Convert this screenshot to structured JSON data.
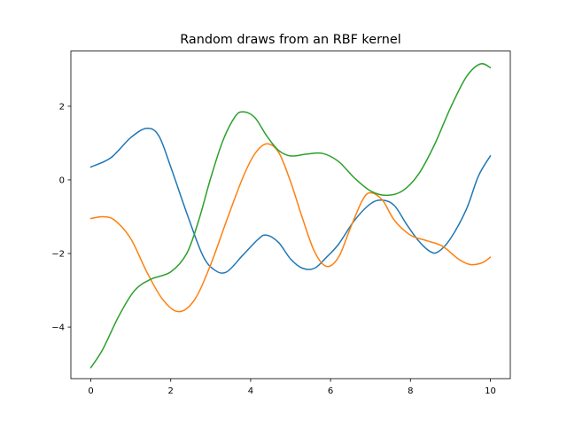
{
  "chart_data": {
    "type": "line",
    "title": "Random draws from an RBF kernel",
    "xlabel": "",
    "ylabel": "",
    "xlim": [
      -0.5,
      10.5
    ],
    "ylim": [
      -5.4,
      3.5
    ],
    "xticks": [
      0,
      2,
      4,
      6,
      8,
      10
    ],
    "xtick_labels": [
      "0",
      "2",
      "4",
      "6",
      "8",
      "10"
    ],
    "yticks": [
      -4,
      -2,
      0,
      2
    ],
    "ytick_labels": [
      "−4",
      "−2",
      "0",
      "2"
    ],
    "grid": false,
    "legend": false,
    "series": [
      {
        "color": "#1f77b4",
        "points": [
          [
            0,
            0.35
          ],
          [
            0.5,
            0.6
          ],
          [
            1.0,
            1.15
          ],
          [
            1.4,
            1.4
          ],
          [
            1.7,
            1.2
          ],
          [
            2.0,
            0.35
          ],
          [
            2.4,
            -0.9
          ],
          [
            2.8,
            -2.05
          ],
          [
            3.1,
            -2.45
          ],
          [
            3.4,
            -2.5
          ],
          [
            3.8,
            -2.05
          ],
          [
            4.2,
            -1.6
          ],
          [
            4.4,
            -1.5
          ],
          [
            4.7,
            -1.7
          ],
          [
            5.0,
            -2.15
          ],
          [
            5.3,
            -2.4
          ],
          [
            5.6,
            -2.4
          ],
          [
            5.9,
            -2.1
          ],
          [
            6.2,
            -1.75
          ],
          [
            6.6,
            -1.1
          ],
          [
            7.0,
            -0.65
          ],
          [
            7.3,
            -0.55
          ],
          [
            7.6,
            -0.7
          ],
          [
            7.9,
            -1.2
          ],
          [
            8.2,
            -1.65
          ],
          [
            8.5,
            -1.95
          ],
          [
            8.7,
            -1.95
          ],
          [
            9.0,
            -1.6
          ],
          [
            9.4,
            -0.8
          ],
          [
            9.7,
            0.1
          ],
          [
            10.0,
            0.65
          ]
        ]
      },
      {
        "color": "#ff7f0e",
        "points": [
          [
            0,
            -1.05
          ],
          [
            0.3,
            -1.0
          ],
          [
            0.6,
            -1.1
          ],
          [
            1.0,
            -1.6
          ],
          [
            1.4,
            -2.5
          ],
          [
            1.8,
            -3.25
          ],
          [
            2.2,
            -3.58
          ],
          [
            2.6,
            -3.25
          ],
          [
            3.0,
            -2.3
          ],
          [
            3.4,
            -1.1
          ],
          [
            3.8,
            0.05
          ],
          [
            4.1,
            0.7
          ],
          [
            4.4,
            0.98
          ],
          [
            4.7,
            0.75
          ],
          [
            5.0,
            -0.05
          ],
          [
            5.3,
            -1.05
          ],
          [
            5.6,
            -1.95
          ],
          [
            5.9,
            -2.35
          ],
          [
            6.2,
            -2.1
          ],
          [
            6.5,
            -1.3
          ],
          [
            6.8,
            -0.55
          ],
          [
            7.0,
            -0.35
          ],
          [
            7.3,
            -0.55
          ],
          [
            7.6,
            -1.1
          ],
          [
            8.0,
            -1.5
          ],
          [
            8.4,
            -1.65
          ],
          [
            8.8,
            -1.8
          ],
          [
            9.2,
            -2.15
          ],
          [
            9.5,
            -2.3
          ],
          [
            9.8,
            -2.25
          ],
          [
            10.0,
            -2.1
          ]
        ]
      },
      {
        "color": "#2ca02c",
        "points": [
          [
            0,
            -5.1
          ],
          [
            0.3,
            -4.6
          ],
          [
            0.7,
            -3.7
          ],
          [
            1.1,
            -3.0
          ],
          [
            1.5,
            -2.7
          ],
          [
            2.0,
            -2.5
          ],
          [
            2.4,
            -2.0
          ],
          [
            2.7,
            -1.1
          ],
          [
            3.0,
            0.05
          ],
          [
            3.3,
            1.05
          ],
          [
            3.6,
            1.7
          ],
          [
            3.8,
            1.85
          ],
          [
            4.1,
            1.7
          ],
          [
            4.4,
            1.2
          ],
          [
            4.7,
            0.8
          ],
          [
            5.0,
            0.65
          ],
          [
            5.4,
            0.7
          ],
          [
            5.8,
            0.72
          ],
          [
            6.2,
            0.5
          ],
          [
            6.6,
            0.05
          ],
          [
            7.0,
            -0.3
          ],
          [
            7.4,
            -0.42
          ],
          [
            7.8,
            -0.3
          ],
          [
            8.2,
            0.15
          ],
          [
            8.6,
            0.95
          ],
          [
            9.0,
            1.95
          ],
          [
            9.4,
            2.8
          ],
          [
            9.75,
            3.15
          ],
          [
            10.0,
            3.05
          ]
        ]
      }
    ]
  }
}
